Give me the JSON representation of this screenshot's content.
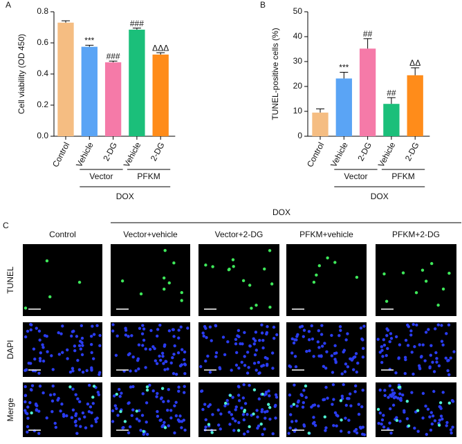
{
  "chart_data": [
    {
      "type": "bar",
      "panel": "A",
      "ylabel": "Cell viability (OD 450)",
      "categories": [
        "Control",
        "Vehicle",
        "2-DG",
        "Vehicle",
        "2-DG"
      ],
      "values": [
        0.73,
        0.575,
        0.475,
        0.685,
        0.525
      ],
      "errors": [
        0.012,
        0.01,
        0.008,
        0.01,
        0.012
      ],
      "annotations": [
        null,
        "***",
        "###",
        "###",
        "ΔΔΔ"
      ],
      "colors": [
        "#f5bd82",
        "#5aa4f5",
        "#f57aa8",
        "#1bbf7a",
        "#ff8c1a"
      ],
      "groups": [
        "Vector",
        "PFKM"
      ],
      "outer_group": "DOX",
      "ylim": [
        0,
        0.8
      ],
      "yticks": [
        {
          "value": 0,
          "label": "0.0"
        },
        0.2,
        0.4,
        0.6,
        0.8
      ]
    },
    {
      "type": "bar",
      "panel": "B",
      "ylabel": "TUNEL-positive cells (%)",
      "categories": [
        "Control",
        "Vehicle",
        "2-DG",
        "Vehicle",
        "2-DG"
      ],
      "values": [
        9.5,
        23.2,
        35.2,
        13,
        24.5
      ],
      "errors": [
        1.5,
        2.5,
        4,
        2.5,
        3
      ],
      "annotations": [
        null,
        "***",
        "##",
        "##",
        "ΔΔ"
      ],
      "colors": [
        "#f5bd82",
        "#5aa4f5",
        "#f57aa8",
        "#1bbf7a",
        "#ff8c1a"
      ],
      "groups": [
        "Vector",
        "PFKM"
      ],
      "outer_group": "DOX",
      "ylim": [
        0,
        50
      ],
      "yticks": [
        0,
        10,
        20,
        30,
        40,
        50
      ]
    }
  ],
  "panel_c": {
    "label": "C",
    "header": "DOX",
    "columns": [
      "Control",
      "Vector+vehicle",
      "Vector+2-DG",
      "PFKM+vehicle",
      "PFKM+2-DG"
    ],
    "rows": [
      "TUNEL",
      "DAPI",
      "Merge"
    ]
  }
}
